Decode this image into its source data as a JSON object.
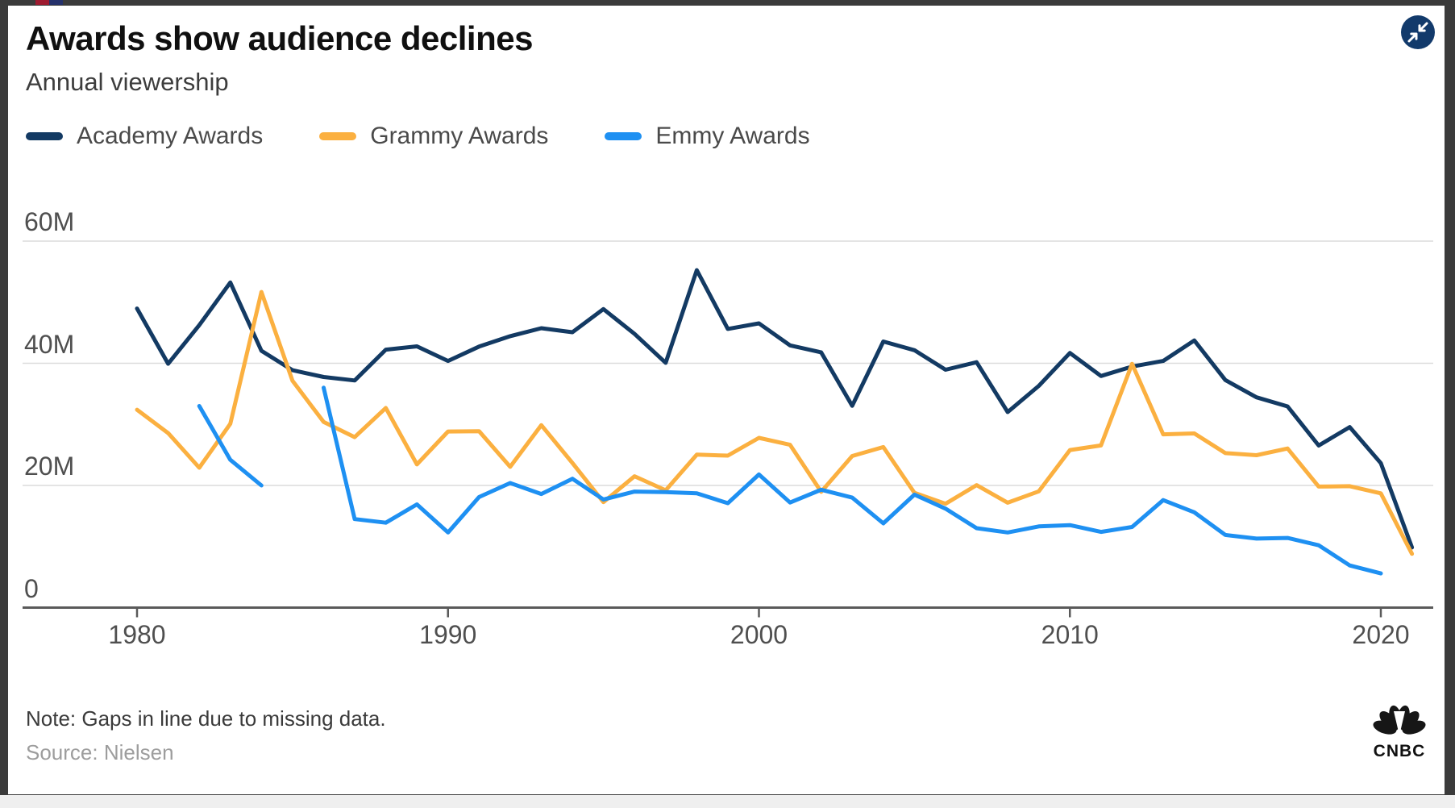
{
  "card": {
    "title": "Awards show audience declines",
    "subtitle": "Annual viewership",
    "note": "Note: Gaps in line due to missing data.",
    "source": "Source: Nielsen",
    "logo_text": "CNBC"
  },
  "colors": {
    "academy": "#133a63",
    "grammy": "#fbb040",
    "emmy": "#1e90f2",
    "gridline": "#dcdcdc",
    "axis": "#5a5a5a",
    "tick_label": "#4f4f4f",
    "button_bg": "#123a6b"
  },
  "legend": [
    {
      "label": "Academy Awards",
      "color_key": "academy"
    },
    {
      "label": "Grammy Awards",
      "color_key": "grammy"
    },
    {
      "label": "Emmy Awards",
      "color_key": "emmy"
    }
  ],
  "chart_data": {
    "type": "line",
    "title": "Awards show audience declines",
    "subtitle": "Annual viewership",
    "unit": "millions of viewers",
    "grid": true,
    "legend_position": "top-left",
    "xlim": [
      1979,
      2022
    ],
    "ylim": [
      0,
      60
    ],
    "x": [
      1980,
      1981,
      1982,
      1983,
      1984,
      1985,
      1986,
      1987,
      1988,
      1989,
      1990,
      1991,
      1992,
      1993,
      1994,
      1995,
      1996,
      1997,
      1998,
      1999,
      2000,
      2001,
      2002,
      2003,
      2004,
      2005,
      2006,
      2007,
      2008,
      2009,
      2010,
      2011,
      2012,
      2013,
      2014,
      2015,
      2016,
      2017,
      2018,
      2019,
      2020,
      2021
    ],
    "series": [
      {
        "name": "Academy Awards",
        "color": "#133a63",
        "values": [
          48.97,
          39.92,
          46.25,
          53.23,
          42.05,
          38.86,
          37.76,
          37.19,
          42.23,
          42.77,
          40.38,
          42.73,
          44.44,
          45.74,
          45.08,
          48.87,
          44.81,
          40.08,
          55.25,
          45.63,
          46.53,
          42.93,
          41.78,
          33.04,
          43.56,
          42.14,
          38.94,
          40.17,
          32.01,
          36.31,
          41.69,
          37.92,
          39.46,
          40.38,
          43.74,
          37.26,
          34.43,
          32.94,
          26.54,
          29.56,
          23.64,
          9.85
        ]
      },
      {
        "name": "Grammy Awards",
        "color": "#fbb040",
        "values": [
          32.39,
          28.57,
          22.91,
          30.09,
          51.67,
          37.12,
          30.39,
          27.91,
          32.68,
          23.45,
          28.83,
          28.89,
          23.05,
          29.87,
          23.68,
          17.27,
          21.5,
          19.21,
          25.04,
          24.88,
          27.79,
          26.65,
          18.96,
          24.82,
          26.29,
          18.8,
          17.0,
          20.05,
          17.18,
          19.04,
          25.8,
          26.55,
          39.91,
          28.37,
          28.51,
          25.3,
          24.95,
          26.05,
          19.81,
          19.88,
          18.7,
          8.8
        ]
      },
      {
        "name": "Emmy Awards",
        "color": "#1e90f2",
        "values": [
          null,
          null,
          33.0,
          24.2,
          20.0,
          null,
          36.0,
          14.5,
          13.9,
          16.9,
          12.3,
          18.1,
          20.4,
          18.6,
          21.1,
          17.7,
          19.0,
          18.9,
          18.7,
          17.1,
          21.8,
          17.2,
          19.3,
          18.0,
          13.8,
          18.5,
          16.2,
          13.0,
          12.3,
          13.3,
          13.5,
          12.4,
          13.2,
          17.6,
          15.6,
          11.9,
          11.3,
          11.4,
          10.2,
          6.9,
          5.6,
          null
        ]
      }
    ],
    "x_ticks": [
      {
        "year": 1980,
        "label": "1980"
      },
      {
        "year": 1990,
        "label": "1990"
      },
      {
        "year": 2000,
        "label": "2000"
      },
      {
        "year": 2010,
        "label": "2010"
      },
      {
        "year": 2020,
        "label": "2020"
      }
    ],
    "y_ticks": [
      {
        "value": 60,
        "label": "60M"
      },
      {
        "value": 40,
        "label": "40M"
      },
      {
        "value": 20,
        "label": "20M"
      },
      {
        "value": 0,
        "label": "0"
      }
    ],
    "note": "Gaps in Emmy Awards line: 1980-81, 1985 and 2021 missing."
  }
}
